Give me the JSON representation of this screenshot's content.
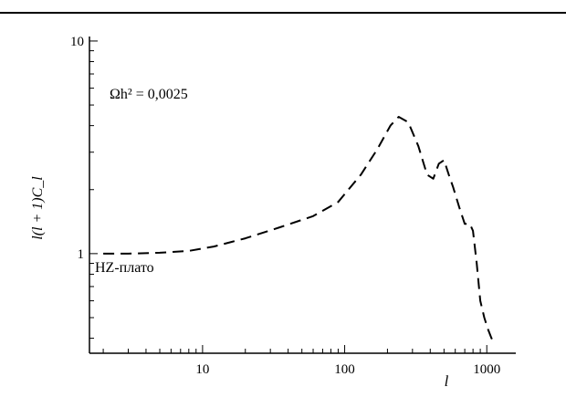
{
  "chart_data": {
    "type": "line",
    "title": "",
    "xlabel": "l",
    "ylabel": "l(l + 1)C_l",
    "xscale": "log",
    "yscale": "log",
    "xlim": [
      1.6,
      1600
    ],
    "ylim": [
      0.34,
      10.5
    ],
    "xticks": [
      10,
      100,
      1000
    ],
    "xtick_labels": [
      "10",
      "100",
      "1000"
    ],
    "yticks": [
      1,
      10
    ],
    "ytick_labels": [
      "1",
      "10"
    ],
    "grid": false,
    "series": [
      {
        "line_style": "dashed",
        "color": "#000000",
        "x": [
          2,
          3,
          5,
          8,
          12,
          20,
          35,
          60,
          90,
          130,
          170,
          210,
          240,
          280,
          330,
          380,
          420,
          460,
          500,
          540,
          580,
          640,
          700,
          760,
          800,
          850,
          900,
          960,
          1020,
          1080,
          1120
        ],
        "y": [
          1.0,
          1.0,
          1.01,
          1.03,
          1.08,
          1.18,
          1.33,
          1.5,
          1.75,
          2.35,
          3.1,
          4.0,
          4.4,
          4.15,
          3.2,
          2.35,
          2.25,
          2.65,
          2.75,
          2.35,
          2.05,
          1.65,
          1.38,
          1.38,
          1.28,
          0.9,
          0.6,
          0.5,
          0.44,
          0.4,
          0.38
        ]
      }
    ],
    "annotations": [
      {
        "text": "Ωh² = 0,0025"
      },
      {
        "text": "HZ-плато"
      }
    ]
  }
}
